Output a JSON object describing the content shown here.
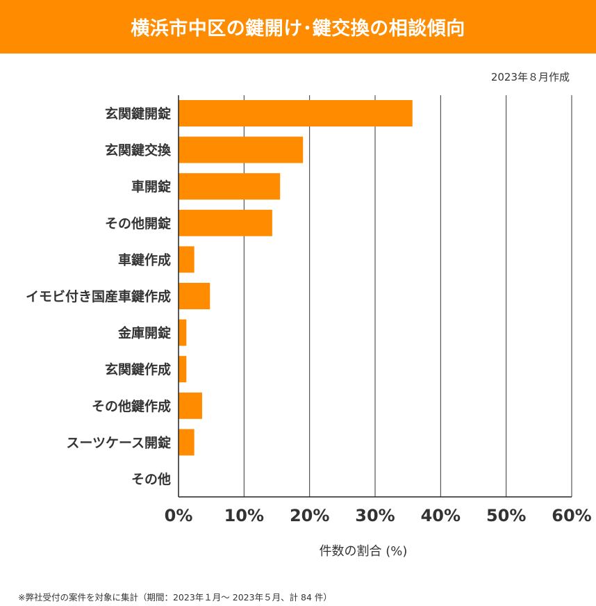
{
  "title": "横浜市中区の鍵開け･鍵交換の相談傾向",
  "created": "2023年８月作成",
  "footnote": "※弊社受付の案件を対象に集計（期間：2023年１月～ 2023年５月、計 84 件）",
  "colors": {
    "accent": "#ff8c00",
    "bar": "#ff8c00",
    "grid": "#333333"
  },
  "chart_data": {
    "type": "bar",
    "orientation": "horizontal",
    "categories": [
      "玄関鍵開錠",
      "玄関鍵交換",
      "車開錠",
      "その他開錠",
      "車鍵作成",
      "イモビ付き国産車鍵作成",
      "金庫開錠",
      "玄関鍵作成",
      "その他鍵作成",
      "スーツケース開錠",
      "その他"
    ],
    "values": [
      35.7,
      19.0,
      15.5,
      14.3,
      2.4,
      4.8,
      1.2,
      1.2,
      3.6,
      2.4,
      0.0
    ],
    "xlabel": "件数の割合 (%)",
    "xlim": [
      0,
      60
    ],
    "xticks": [
      0,
      10,
      20,
      30,
      40,
      50,
      60
    ],
    "xtick_labels": [
      "0%",
      "10%",
      "20%",
      "30%",
      "40%",
      "50%",
      "60%"
    ],
    "grid": true,
    "legend": "none"
  }
}
